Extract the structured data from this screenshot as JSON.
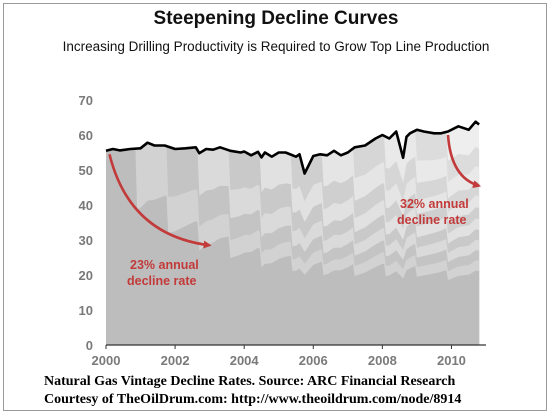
{
  "title": "Steepening Decline Curves",
  "subtitle": "Increasing Drilling Productivity is Required to Grow Top Line Production",
  "caption": {
    "line1": "Natural Gas Vintage Decline Rates. Source: ARC Financial Research",
    "line2": "Courtesy of TheOilDrum.com:  http://www.theoildrum.com/node/8914"
  },
  "colors": {
    "total_line": "#000000",
    "arrow": "#c23a3a",
    "annotation": "#c23a3a",
    "bands": [
      "#bdbdbd",
      "#d2d2d2",
      "#c4c4c4",
      "#dadada",
      "#c9c9c9",
      "#e1e1e1",
      "#cfcfcf",
      "#e5e5e5",
      "#d6d6d6",
      "#e9e9e9",
      "#dcdcdc",
      "#eeeeee"
    ]
  },
  "chart_data": {
    "type": "area",
    "xlim": [
      2000,
      2011
    ],
    "ylim": [
      0,
      70
    ],
    "x_ticks": [
      "2000",
      "2002",
      "2004",
      "2006",
      "2008",
      "2010"
    ],
    "y_ticks": [
      "0",
      "10",
      "20",
      "30",
      "40",
      "50",
      "60",
      "70"
    ],
    "grid": false,
    "legend": "none",
    "series": [
      {
        "role": "total",
        "x": [
          2000.0,
          2000.2,
          2000.4,
          2000.7,
          2001.0,
          2001.2,
          2001.4,
          2001.7,
          2002.0,
          2002.3,
          2002.6,
          2002.7,
          2002.9,
          2003.1,
          2003.3,
          2003.6,
          2003.9,
          2004.0,
          2004.2,
          2004.4,
          2004.5,
          2004.6,
          2004.8,
          2005.0,
          2005.2,
          2005.5,
          2005.6,
          2005.75,
          2006.0,
          2006.2,
          2006.4,
          2006.6,
          2006.8,
          2007.0,
          2007.2,
          2007.5,
          2007.8,
          2008.0,
          2008.2,
          2008.4,
          2008.6,
          2008.7,
          2008.8,
          2009.0,
          2009.2,
          2009.5,
          2009.7,
          2009.9,
          2010.2,
          2010.5,
          2010.7,
          2010.8
        ],
        "values": [
          55.5,
          56.0,
          55.6,
          56.0,
          56.2,
          57.8,
          57.0,
          57.0,
          56.0,
          56.2,
          56.5,
          54.8,
          56.0,
          55.8,
          56.5,
          55.5,
          55.0,
          55.3,
          54.2,
          55.2,
          53.6,
          55.0,
          53.8,
          55.0,
          55.0,
          53.8,
          54.5,
          49.0,
          54.0,
          54.5,
          54.2,
          55.5,
          54.2,
          55.0,
          56.5,
          57.0,
          59.0,
          60.0,
          59.0,
          61.0,
          53.5,
          59.5,
          60.5,
          61.5,
          61.0,
          60.5,
          60.5,
          61.0,
          62.5,
          61.5,
          63.8,
          63.0
        ]
      }
    ],
    "annotations": [
      {
        "text_line1": "23% annual",
        "text_line2": "decline rate",
        "from": [
          2000.1,
          54.5
        ],
        "to": [
          2003.0,
          28.5
        ]
      },
      {
        "text_line1": "32% annual",
        "text_line2": "decline rate",
        "from": [
          2009.9,
          60.0
        ],
        "to": [
          2010.8,
          45.5
        ]
      }
    ]
  }
}
